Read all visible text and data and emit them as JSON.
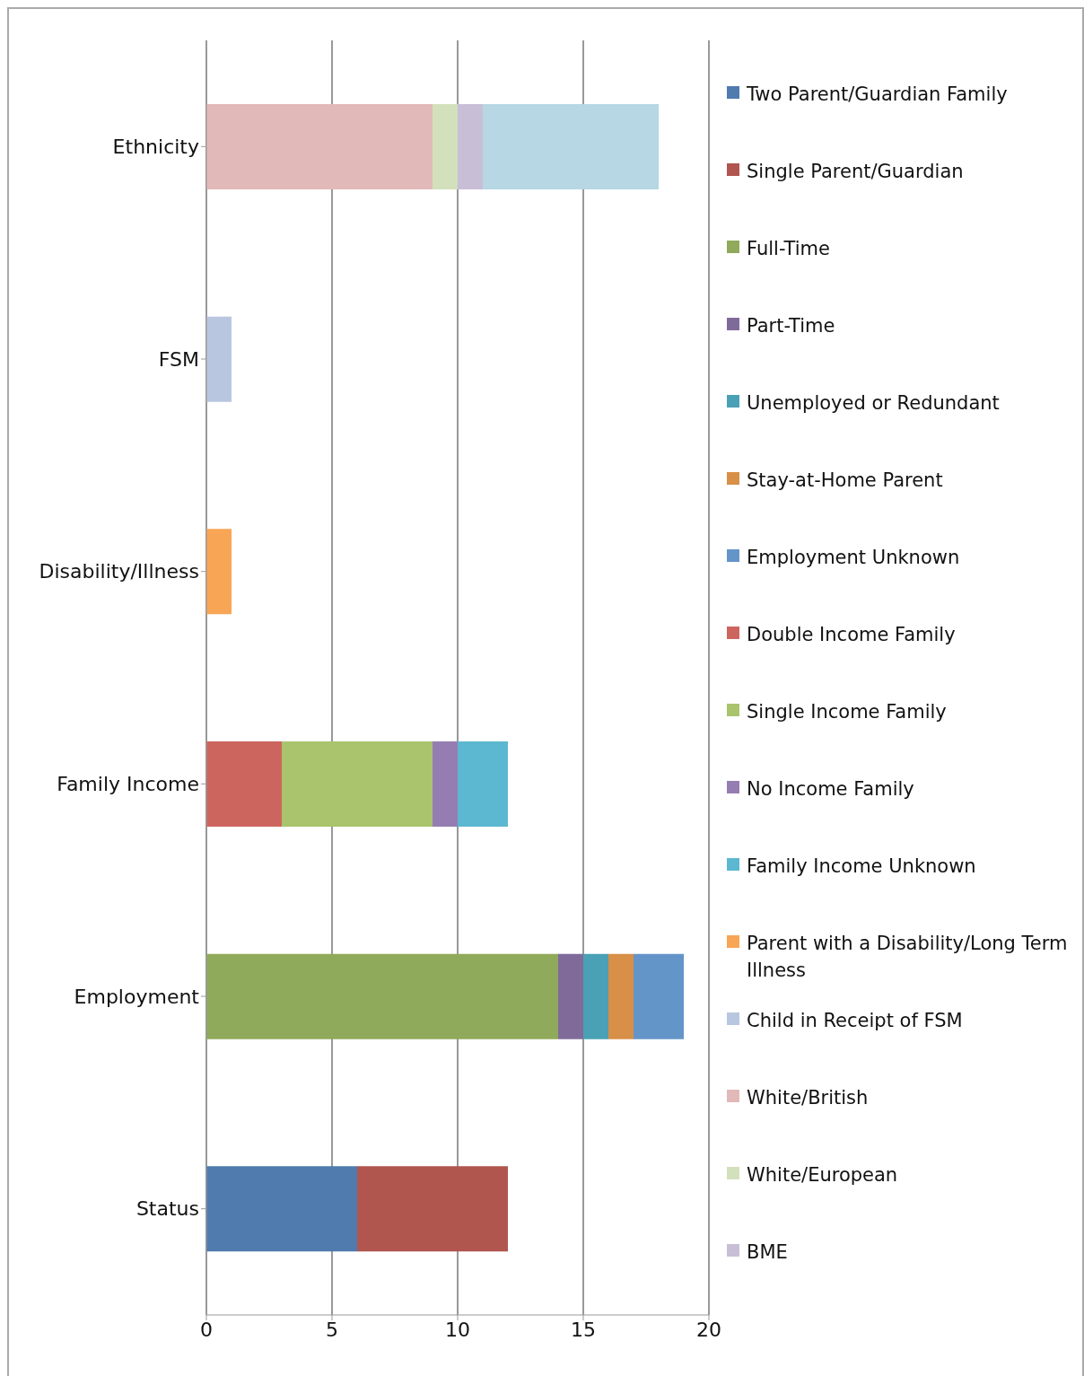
{
  "chart_data": {
    "type": "bar",
    "orientation": "horizontal",
    "stacked": true,
    "categories": [
      "Ethnicity",
      "FSM",
      "Disability/Illness",
      "Family Income",
      "Employment",
      "Status"
    ],
    "xlim": [
      0,
      20
    ],
    "xticks": [
      0,
      5,
      10,
      15,
      20
    ],
    "grid": "x",
    "legend": "right",
    "series": [
      {
        "name": "Two Parent/Guardian Family",
        "color": "#4f7bae",
        "values": [
          null,
          null,
          null,
          null,
          null,
          6
        ]
      },
      {
        "name": "Single Parent/Guardian",
        "color": "#b0564f",
        "values": [
          null,
          null,
          null,
          null,
          null,
          6
        ]
      },
      {
        "name": "Full-Time",
        "color": "#8faa5a",
        "values": [
          null,
          null,
          null,
          null,
          14,
          null
        ]
      },
      {
        "name": "Part-Time",
        "color": "#7f6a9a",
        "values": [
          null,
          null,
          null,
          null,
          1,
          null
        ]
      },
      {
        "name": "Unemployed or Redundant",
        "color": "#4aa0b5",
        "values": [
          null,
          null,
          null,
          null,
          1,
          null
        ]
      },
      {
        "name": "Stay-at-Home Parent",
        "color": "#d88f47",
        "values": [
          null,
          null,
          null,
          null,
          1,
          null
        ]
      },
      {
        "name": "Employment Unknown",
        "color": "#6495c9",
        "values": [
          null,
          null,
          null,
          null,
          2,
          null
        ]
      },
      {
        "name": "Double Income Family",
        "color": "#cd655f",
        "values": [
          null,
          null,
          null,
          3,
          null,
          null
        ]
      },
      {
        "name": "Single Income Family",
        "color": "#a9c46d",
        "values": [
          null,
          null,
          null,
          6,
          null,
          null
        ]
      },
      {
        "name": "No Income Family",
        "color": "#957db1",
        "values": [
          null,
          null,
          null,
          1,
          null,
          null
        ]
      },
      {
        "name": "Family Income Unknown",
        "color": "#5bb8d0",
        "values": [
          null,
          null,
          null,
          2,
          null,
          null
        ]
      },
      {
        "name": "Parent with a Disability/Long Term Illness",
        "color": "#f8a555",
        "values": [
          null,
          null,
          1,
          null,
          null,
          null
        ]
      },
      {
        "name": "Child in Receipt of FSM",
        "color": "#b8c6e0",
        "values": [
          null,
          1,
          null,
          null,
          null,
          null
        ]
      },
      {
        "name": "White/British",
        "color": "#e1b9b8",
        "values": [
          9,
          null,
          null,
          null,
          null,
          null
        ]
      },
      {
        "name": "White/European",
        "color": "#d3e0bc",
        "values": [
          1,
          null,
          null,
          null,
          null,
          null
        ]
      },
      {
        "name": "BME",
        "color": "#c8bfd6",
        "values": [
          1,
          null,
          null,
          null,
          null,
          null
        ]
      },
      {
        "color": "#b6d7e3",
        "values": [
          7,
          null,
          null,
          null,
          null,
          null
        ]
      }
    ]
  }
}
